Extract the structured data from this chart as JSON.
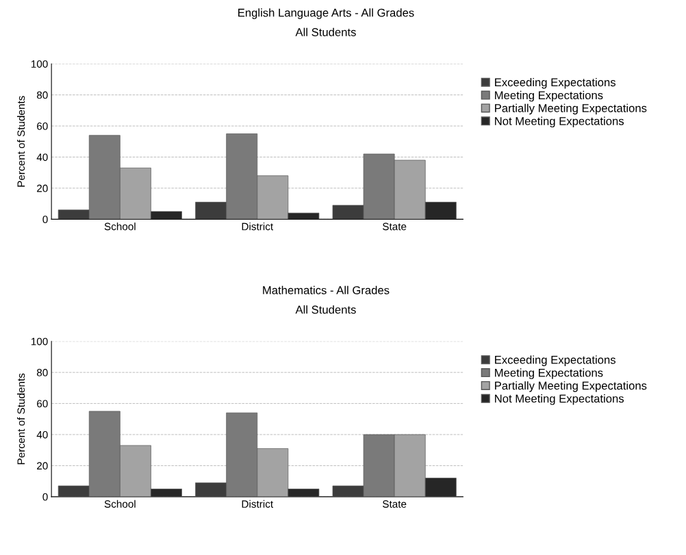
{
  "chart_data": [
    {
      "type": "bar",
      "title": "English Language Arts - All Grades",
      "subtitle": "All Students",
      "ylabel": "Percent of Students",
      "categories": [
        "School",
        "District",
        "State"
      ],
      "ylim": [
        0,
        100
      ],
      "yticks": [
        0,
        20,
        40,
        60,
        80,
        100
      ],
      "grid": "y",
      "legend": "right",
      "series": [
        {
          "name": "Exceeding Expectations",
          "color": "#3c3c3c",
          "values": [
            6,
            11,
            9
          ]
        },
        {
          "name": "Meeting Expectations",
          "color": "#7a7a7a",
          "values": [
            54,
            55,
            42
          ]
        },
        {
          "name": "Partially Meeting Expectations",
          "color": "#a3a3a3",
          "values": [
            33,
            28,
            38
          ]
        },
        {
          "name": "Not Meeting Expectations",
          "color": "#262626",
          "values": [
            5,
            4,
            11
          ]
        }
      ]
    },
    {
      "type": "bar",
      "title": "Mathematics - All Grades",
      "subtitle": "All Students",
      "ylabel": "Percent of Students",
      "categories": [
        "School",
        "District",
        "State"
      ],
      "ylim": [
        0,
        100
      ],
      "yticks": [
        0,
        20,
        40,
        60,
        80,
        100
      ],
      "grid": "y",
      "legend": "right",
      "series": [
        {
          "name": "Exceeding Expectations",
          "color": "#3c3c3c",
          "values": [
            7,
            9,
            7
          ]
        },
        {
          "name": "Meeting Expectations",
          "color": "#7a7a7a",
          "values": [
            55,
            54,
            40
          ]
        },
        {
          "name": "Partially Meeting Expectations",
          "color": "#a3a3a3",
          "values": [
            33,
            31,
            40
          ]
        },
        {
          "name": "Not Meeting Expectations",
          "color": "#262626",
          "values": [
            5,
            5,
            12
          ]
        }
      ]
    }
  ]
}
